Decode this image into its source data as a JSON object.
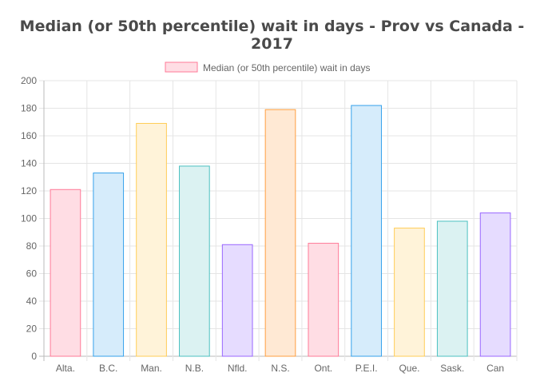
{
  "chart_data": {
    "type": "bar",
    "title": "Median (or 50th percentile) wait in days - Prov vs Canada - 2017",
    "legend": {
      "label": "Median (or 50th percentile) wait in days",
      "position": "top"
    },
    "categories": [
      "Alta.",
      "B.C.",
      "Man.",
      "N.B.",
      "Nfld.",
      "N.S.",
      "Ont.",
      "P.E.I.",
      "Que.",
      "Sask.",
      "Can"
    ],
    "series": [
      {
        "name": "Median (or 50th percentile) wait in days",
        "values": [
          121,
          133,
          169,
          138,
          81,
          179,
          82,
          182,
          93,
          98,
          104
        ]
      }
    ],
    "ylim": [
      0,
      200
    ],
    "yticks": [
      0,
      20,
      40,
      60,
      80,
      100,
      120,
      140,
      160,
      180,
      200
    ],
    "grid": true,
    "colors": [
      {
        "fill": "#ffdde4",
        "stroke": "#ff7a97"
      },
      {
        "fill": "#d6ecfb",
        "stroke": "#36a2eb"
      },
      {
        "fill": "#fff3d9",
        "stroke": "#ffcd56"
      },
      {
        "fill": "#dbf2f2",
        "stroke": "#4bc0c0"
      },
      {
        "fill": "#e6dcff",
        "stroke": "#9966ff"
      },
      {
        "fill": "#ffe9d4",
        "stroke": "#ff9f40"
      }
    ],
    "legend_color": {
      "fill": "#ffdde4",
      "stroke": "#ff7a97"
    }
  }
}
